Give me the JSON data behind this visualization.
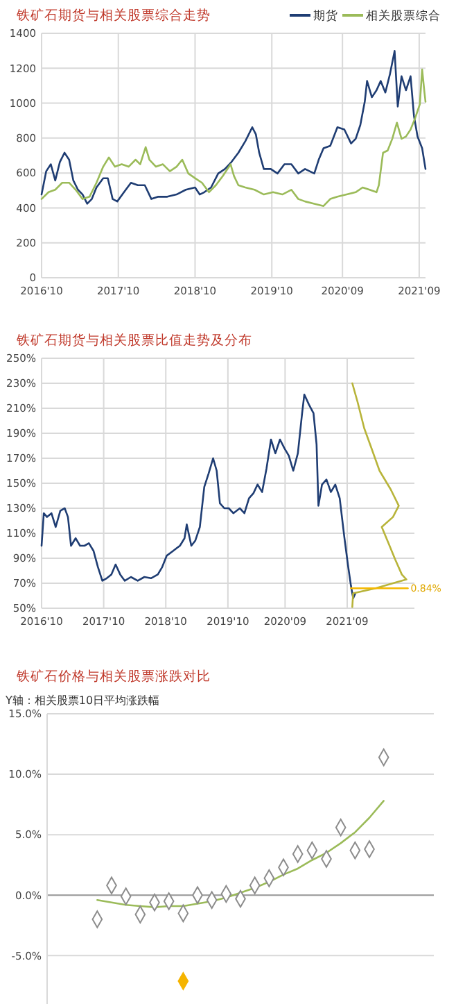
{
  "chart_data": [
    {
      "type": "line",
      "title": "铁矿石期货与相关股票综合走势",
      "legend": "top right",
      "grid": true,
      "xlim": [
        "2016-10-01",
        "2021-10-01"
      ],
      "xticks": [
        {
          "value": "2016-10",
          "label": "2016'10"
        },
        {
          "value": "2017-10",
          "label": "2017'10"
        },
        {
          "value": "2018-10",
          "label": "2018'10"
        },
        {
          "value": "2019-10",
          "label": "2019'10"
        },
        {
          "value": "2020-09",
          "label": "2020'09"
        },
        {
          "value": "2021-09",
          "label": "2021'09"
        }
      ],
      "ylim": [
        0,
        1400
      ],
      "yticks": [
        0,
        200,
        400,
        600,
        800,
        1000,
        1200,
        1400
      ],
      "series": [
        {
          "name": "期货",
          "color": "#1f3d73",
          "x": [
            "2016-10-01",
            "2016-10-23",
            "2016-11-14",
            "2016-12-05",
            "2016-12-27",
            "2017-01-18",
            "2017-02-09",
            "2017-03-01",
            "2017-03-23",
            "2017-04-14",
            "2017-05-06",
            "2017-05-28",
            "2017-06-19",
            "2017-07-21",
            "2017-08-12",
            "2017-09-04",
            "2017-09-26",
            "2017-10-28",
            "2017-11-30",
            "2018-01-02",
            "2018-02-04",
            "2018-03-07",
            "2018-04-09",
            "2018-05-22",
            "2018-07-05",
            "2018-08-18",
            "2018-10-01",
            "2018-10-23",
            "2018-11-14",
            "2018-12-16",
            "2019-01-19",
            "2019-02-20",
            "2019-03-23",
            "2019-04-25",
            "2019-05-28",
            "2019-06-30",
            "2019-07-17",
            "2019-08-02",
            "2019-08-24",
            "2019-09-26",
            "2019-10-28",
            "2019-11-30",
            "2020-01-02",
            "2020-02-04",
            "2020-03-07",
            "2020-04-20",
            "2020-05-11",
            "2020-06-03",
            "2020-07-05",
            "2020-08-08",
            "2020-09-10",
            "2020-10-12",
            "2020-11-03",
            "2020-11-25",
            "2020-12-16",
            "2020-12-27",
            "2021-01-19",
            "2021-02-10",
            "2021-03-02",
            "2021-03-24",
            "2021-04-15",
            "2021-05-07",
            "2021-05-22",
            "2021-06-09",
            "2021-06-30",
            "2021-07-22",
            "2021-08-07",
            "2021-08-24",
            "2021-09-15",
            "2021-10-01"
          ],
          "values": [
            477,
            610,
            650,
            557,
            663,
            716,
            676,
            557,
            504,
            477,
            424,
            451,
            517,
            570,
            570,
            451,
            437,
            490,
            544,
            530,
            530,
            451,
            464,
            464,
            477,
            504,
            517,
            477,
            490,
            517,
            597,
            623,
            663,
            716,
            782,
            862,
            822,
            716,
            623,
            623,
            597,
            650,
            650,
            597,
            623,
            597,
            676,
            742,
            756,
            862,
            849,
            769,
            796,
            875,
            1008,
            1127,
            1034,
            1074,
            1127,
            1061,
            1167,
            1299,
            981,
            1154,
            1074,
            1154,
            928,
            809,
            742,
            623
          ]
        },
        {
          "name": "相关股票综合",
          "color": "#9bbb59",
          "x": [
            "2016-10-01",
            "2016-11-03",
            "2016-12-05",
            "2017-01-07",
            "2017-02-09",
            "2017-03-12",
            "2017-04-14",
            "2017-05-17",
            "2017-06-19",
            "2017-07-21",
            "2017-08-17",
            "2017-09-15",
            "2017-10-17",
            "2017-11-19",
            "2017-12-22",
            "2018-01-13",
            "2018-02-08",
            "2018-02-26",
            "2018-03-29",
            "2018-05-01",
            "2018-06-03",
            "2018-07-05",
            "2018-08-01",
            "2018-08-30",
            "2018-10-01",
            "2018-11-03",
            "2018-12-06",
            "2019-01-08",
            "2019-02-10",
            "2019-03-19",
            "2019-04-04",
            "2019-04-25",
            "2019-05-28",
            "2019-07-11",
            "2019-08-24",
            "2019-10-07",
            "2019-11-20",
            "2020-01-02",
            "2020-02-04",
            "2020-03-07",
            "2020-04-20",
            "2020-06-03",
            "2020-07-05",
            "2020-08-08",
            "2020-09-21",
            "2020-11-03",
            "2020-12-06",
            "2021-01-08",
            "2021-02-10",
            "2021-02-21",
            "2021-03-13",
            "2021-04-04",
            "2021-04-26",
            "2021-05-18",
            "2021-06-09",
            "2021-06-30",
            "2021-07-22",
            "2021-08-13",
            "2021-09-04",
            "2021-09-15",
            "2021-09-26",
            "2021-10-01"
          ],
          "values": [
            451,
            490,
            504,
            544,
            544,
            504,
            451,
            464,
            544,
            636,
            689,
            636,
            650,
            636,
            676,
            650,
            748,
            676,
            636,
            650,
            610,
            636,
            676,
            597,
            570,
            544,
            490,
            530,
            583,
            650,
            583,
            530,
            517,
            504,
            477,
            490,
            477,
            504,
            451,
            437,
            424,
            411,
            451,
            464,
            477,
            490,
            517,
            504,
            490,
            530,
            716,
            729,
            796,
            888,
            796,
            809,
            849,
            915,
            994,
            1193,
            1061,
            1008
          ]
        }
      ]
    },
    {
      "type": "line",
      "title": "铁矿石期货与相关股票比值走势及分布",
      "grid": true,
      "xlim": [
        "2016-10-01",
        "2022-10-01"
      ],
      "xticks": [
        {
          "value": "2016-10",
          "label": "2016'10"
        },
        {
          "value": "2017-10",
          "label": "2017'10"
        },
        {
          "value": "2018-10",
          "label": "2018'10"
        },
        {
          "value": "2019-10",
          "label": "2019'10"
        },
        {
          "value": "2020-09",
          "label": "2020'09"
        },
        {
          "value": "2021-09",
          "label": "2021'09"
        }
      ],
      "ylim": [
        50,
        250
      ],
      "yticks": [
        {
          "value": 50,
          "label": "50%"
        },
        {
          "value": 70,
          "label": "70%"
        },
        {
          "value": 90,
          "label": "90%"
        },
        {
          "value": 110,
          "label": "110%"
        },
        {
          "value": 130,
          "label": "130%"
        },
        {
          "value": 150,
          "label": "150%"
        },
        {
          "value": 170,
          "label": "170%"
        },
        {
          "value": 190,
          "label": "190%"
        },
        {
          "value": 210,
          "label": "210%"
        },
        {
          "value": 230,
          "label": "230%"
        },
        {
          "value": 250,
          "label": "250%"
        }
      ],
      "annotations": [
        {
          "text": "0.84%",
          "x": "2022-08-23",
          "y": 66
        }
      ],
      "series": [
        {
          "color": "#1f3d73",
          "x": [
            "2016-10-01",
            "2016-10-14",
            "2016-11-02",
            "2016-11-28",
            "2016-12-23",
            "2017-01-19",
            "2017-02-14",
            "2017-03-05",
            "2017-03-23",
            "2017-04-19",
            "2017-05-15",
            "2017-06-10",
            "2017-07-06",
            "2017-08-02",
            "2017-08-28",
            "2017-09-23",
            "2017-10-19",
            "2017-11-15",
            "2017-12-10",
            "2018-01-06",
            "2018-02-02",
            "2018-03-10",
            "2018-04-19",
            "2018-05-28",
            "2018-07-06",
            "2018-08-15",
            "2018-09-10",
            "2018-10-06",
            "2018-11-14",
            "2018-12-23",
            "2019-01-19",
            "2019-02-01",
            "2019-02-28",
            "2019-03-23",
            "2019-04-19",
            "2019-05-15",
            "2019-06-10",
            "2019-07-06",
            "2019-07-27",
            "2019-08-15",
            "2019-09-10",
            "2019-10-06",
            "2019-11-02",
            "2019-12-10",
            "2020-01-06",
            "2020-02-02",
            "2020-02-28",
            "2020-03-23",
            "2020-04-19",
            "2020-05-15",
            "2020-06-10",
            "2020-07-06",
            "2020-08-02",
            "2020-08-28",
            "2020-09-23",
            "2020-10-19",
            "2020-11-15",
            "2020-12-10",
            "2020-12-23",
            "2021-01-19",
            "2021-02-15",
            "2021-03-05",
            "2021-03-16",
            "2021-04-06",
            "2021-05-02",
            "2021-05-28",
            "2021-06-23",
            "2021-07-19",
            "2021-08-15",
            "2021-09-05",
            "2021-09-23",
            "2021-10-06",
            "2021-10-19"
          ],
          "values": [
            100,
            126,
            123,
            126,
            115,
            128,
            130,
            123,
            100,
            106,
            100,
            100,
            102,
            96,
            83,
            72,
            74,
            77,
            85,
            77,
            72,
            75,
            72,
            75,
            74,
            77,
            83,
            92,
            96,
            100,
            106,
            117,
            100,
            104,
            115,
            147,
            158,
            170,
            160,
            134,
            130,
            130,
            126,
            130,
            126,
            138,
            142,
            149,
            143,
            162,
            185,
            174,
            185,
            178,
            172,
            160,
            174,
            206,
            221,
            213,
            206,
            181,
            132,
            149,
            153,
            143,
            149,
            138,
            107,
            85,
            68,
            58,
            62
          ]
        },
        {
          "color": "#b8b43a",
          "x": [
            "2021-10-01",
            "2021-11-01",
            "2021-12-10",
            "2022-01-19",
            "2022-03-10",
            "2022-05-15",
            "2022-07-01",
            "2022-05-28",
            "2022-03-23",
            "2022-05-02",
            "2022-06-10",
            "2022-07-19",
            "2022-08-15",
            "2022-05-28",
            "2022-02-15",
            "2021-10-06",
            "2021-10-01"
          ],
          "values": [
            230,
            215,
            194,
            179,
            160,
            145,
            132,
            123,
            115,
            102,
            89,
            77,
            73,
            70,
            66,
            62,
            51
          ]
        },
        {
          "color": "#f5b800",
          "x": [
            "2021-09-23",
            "2022-08-23"
          ],
          "values": [
            66,
            66
          ]
        }
      ]
    },
    {
      "type": "scatter",
      "title": "铁矿石价格与相关股票涨跌对比",
      "ylabel": "Y轴：相关股票10日平均涨跌幅",
      "grid": "y",
      "marker": "diamond",
      "categories": [
        null,
        null,
        null,
        null,
        null,
        null,
        null,
        null,
        null,
        null,
        null,
        null,
        null,
        null,
        null,
        null,
        null,
        null,
        null,
        null,
        null
      ],
      "ylim": [
        -9,
        15
      ],
      "yticks": [
        {
          "value": -5,
          "label": "-5.0%"
        },
        {
          "value": 0,
          "label": "0.0%"
        },
        {
          "value": 5,
          "label": "5.0%"
        },
        {
          "value": 10,
          "label": "10.0%"
        },
        {
          "value": 15,
          "label": "15.0%"
        }
      ],
      "series": [
        {
          "color": "#8c8c8c",
          "values": [
            -2,
            0.8,
            -0.1,
            -1.6,
            -0.6,
            -0.5,
            -1.5,
            0,
            -0.4,
            0.1,
            -0.3,
            0.8,
            1.4,
            2.3,
            3.4,
            3.7,
            3,
            5.6,
            3.7,
            3.8,
            11.4
          ]
        },
        {
          "type": "line",
          "marker": "none",
          "color": "#9bbb59",
          "values": [
            -0.4,
            -0.6,
            -0.8,
            -0.9,
            -1,
            -0.9,
            -0.9,
            -0.7,
            -0.5,
            -0.2,
            0.2,
            0.6,
            1.1,
            1.7,
            2.2,
            2.9,
            3.5,
            4.3,
            5.2,
            6.4,
            7.8
          ]
        },
        {
          "color": "#f5b400",
          "values": [
            null,
            null,
            null,
            null,
            null,
            null,
            -7.1,
            null,
            null,
            null,
            null,
            null,
            null,
            null,
            null,
            null,
            null,
            null,
            null,
            null,
            null
          ]
        }
      ]
    }
  ]
}
